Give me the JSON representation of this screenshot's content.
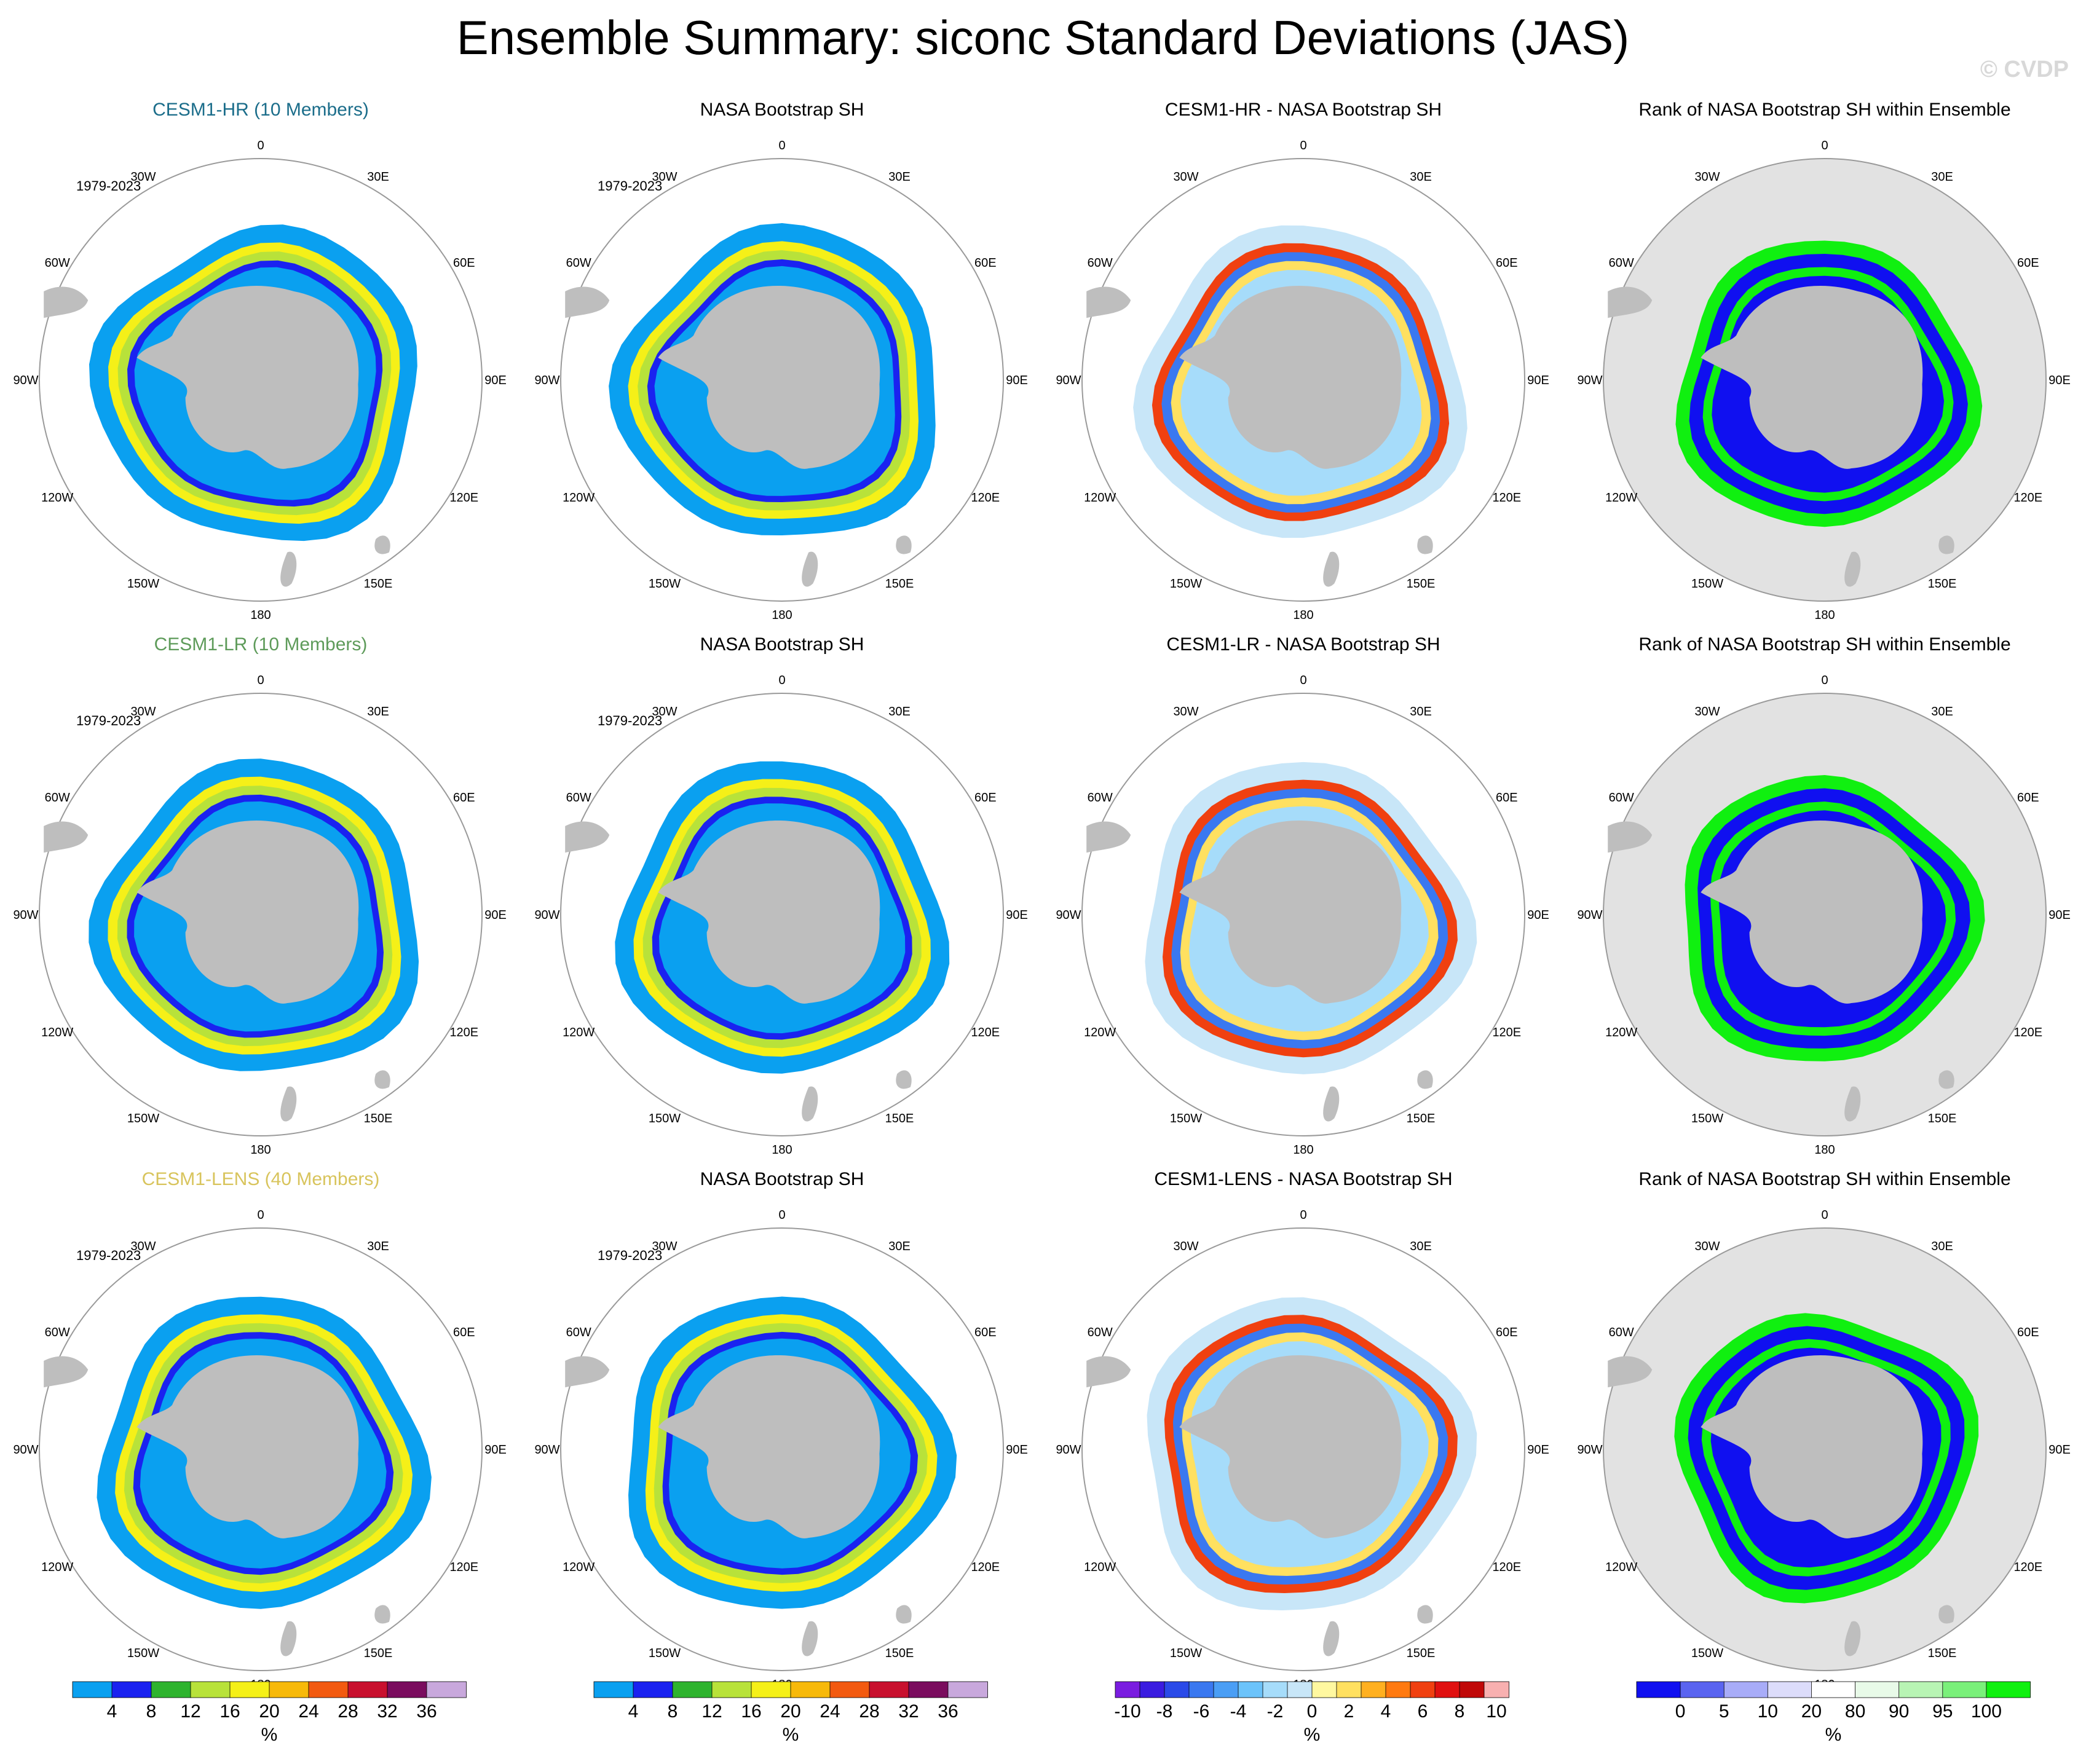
{
  "title": "Ensemble Summary: siconc Standard Deviations (JAS)",
  "watermark": "© CVDP",
  "period": "1979-2023",
  "lon_labels": [
    "0",
    "30E",
    "60E",
    "90E",
    "120E",
    "150E",
    "180",
    "150W",
    "120W",
    "90W",
    "60W",
    "30W"
  ],
  "colors": {
    "land": "#bebebe",
    "rank_bg": "#e2e2e2",
    "circle": "#9a9a9a"
  },
  "rows": [
    {
      "model": "CESM1-HR (10 Members)",
      "model_color": "#1b6d8a",
      "obs": "NASA Bootstrap SH",
      "diff": "CESM1-HR - NASA Bootstrap SH",
      "rank": "Rank of NASA Bootstrap SH within Ensemble"
    },
    {
      "model": "CESM1-LR (10 Members)",
      "model_color": "#5e9b5a",
      "obs": "NASA Bootstrap SH",
      "diff": "CESM1-LR - NASA Bootstrap SH",
      "rank": "Rank of NASA Bootstrap SH within Ensemble"
    },
    {
      "model": "CESM1-LENS (40 Members)",
      "model_color": "#d8c45c",
      "obs": "NASA Bootstrap SH",
      "diff": "CESM1-LENS - NASA Bootstrap SH",
      "rank": "Rank of NASA Bootstrap SH within Ensemble"
    }
  ],
  "colorbars": {
    "std": {
      "colors": [
        "#0aa0f0",
        "#1a22f0",
        "#2eb32e",
        "#b8e23a",
        "#f5f018",
        "#f7b90a",
        "#f25a10",
        "#c8102e",
        "#7a0c5e",
        "#c8a8dc"
      ],
      "labels": [
        "4",
        "8",
        "12",
        "16",
        "20",
        "24",
        "28",
        "32",
        "36"
      ],
      "unit": "%"
    },
    "diff": {
      "colors": [
        "#7a1ce0",
        "#3a1ce0",
        "#2a4ae8",
        "#3a78f0",
        "#4a9ef5",
        "#6cc3fa",
        "#a6dcfa",
        "#c8e6f8",
        "#fff8a0",
        "#ffe060",
        "#ffb020",
        "#ff7a10",
        "#f04010",
        "#e01010",
        "#c00808",
        "#f8b0b0"
      ],
      "labels": [
        "-10",
        "-8",
        "-6",
        "-4",
        "-2",
        "0",
        "2",
        "4",
        "6",
        "8",
        "10"
      ],
      "unit": "%"
    },
    "rank": {
      "colors": [
        "#1010f0",
        "#5a64f0",
        "#a8acf8",
        "#dcdcfa",
        "#ffffff",
        "#e8fae8",
        "#b8f4b4",
        "#7af07a",
        "#10f010"
      ],
      "labels": [
        "0",
        "5",
        "10",
        "20",
        "80",
        "90",
        "95",
        "100"
      ],
      "unit": "%"
    }
  }
}
